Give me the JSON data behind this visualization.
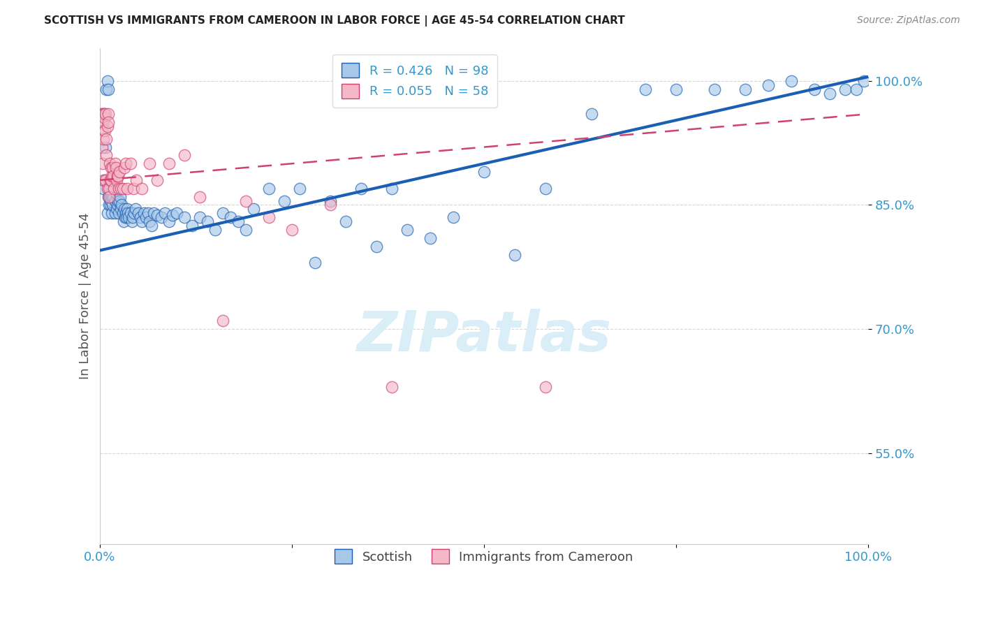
{
  "title": "SCOTTISH VS IMMIGRANTS FROM CAMEROON IN LABOR FORCE | AGE 45-54 CORRELATION CHART",
  "source": "Source: ZipAtlas.com",
  "ylabel": "In Labor Force | Age 45-54",
  "xlim": [
    0.0,
    1.0
  ],
  "ylim": [
    0.44,
    1.04
  ],
  "ytick_positions": [
    0.55,
    0.7,
    0.85,
    1.0
  ],
  "ytick_labels": [
    "55.0%",
    "70.0%",
    "85.0%",
    "100.0%"
  ],
  "xtick_positions": [
    0.0,
    0.25,
    0.5,
    0.75,
    1.0
  ],
  "xtick_labels": [
    "0.0%",
    "",
    "",
    "",
    "100.0%"
  ],
  "blue_R": 0.426,
  "blue_N": 98,
  "pink_R": 0.055,
  "pink_N": 58,
  "blue_color": "#a8c8e8",
  "pink_color": "#f4b8c8",
  "trend_blue": "#1a5fb4",
  "trend_pink": "#d04070",
  "watermark": "ZIPatlas",
  "watermark_color": "#daeef8",
  "legend_label_blue": "Scottish",
  "legend_label_pink": "Immigrants from Cameroon",
  "blue_scatter_x": [
    0.005,
    0.007,
    0.008,
    0.009,
    0.01,
    0.01,
    0.011,
    0.011,
    0.012,
    0.012,
    0.013,
    0.013,
    0.014,
    0.014,
    0.015,
    0.015,
    0.016,
    0.016,
    0.017,
    0.018,
    0.019,
    0.02,
    0.02,
    0.021,
    0.022,
    0.023,
    0.024,
    0.025,
    0.026,
    0.027,
    0.028,
    0.029,
    0.03,
    0.031,
    0.032,
    0.033,
    0.034,
    0.035,
    0.036,
    0.037,
    0.038,
    0.04,
    0.042,
    0.043,
    0.045,
    0.047,
    0.05,
    0.053,
    0.055,
    0.058,
    0.06,
    0.063,
    0.065,
    0.068,
    0.07,
    0.075,
    0.08,
    0.085,
    0.09,
    0.095,
    0.1,
    0.11,
    0.12,
    0.13,
    0.14,
    0.15,
    0.16,
    0.17,
    0.18,
    0.19,
    0.2,
    0.22,
    0.24,
    0.26,
    0.28,
    0.3,
    0.32,
    0.34,
    0.36,
    0.38,
    0.4,
    0.43,
    0.46,
    0.5,
    0.54,
    0.58,
    0.64,
    0.71,
    0.75,
    0.8,
    0.84,
    0.87,
    0.9,
    0.93,
    0.95,
    0.97,
    0.985,
    0.995
  ],
  "blue_scatter_y": [
    0.87,
    0.88,
    0.92,
    0.99,
    1.0,
    0.84,
    0.86,
    0.99,
    0.88,
    0.85,
    0.87,
    0.86,
    0.86,
    0.85,
    0.855,
    0.865,
    0.84,
    0.86,
    0.85,
    0.86,
    0.87,
    0.84,
    0.855,
    0.865,
    0.845,
    0.85,
    0.855,
    0.84,
    0.855,
    0.86,
    0.845,
    0.85,
    0.84,
    0.83,
    0.845,
    0.835,
    0.84,
    0.835,
    0.845,
    0.84,
    0.835,
    0.84,
    0.83,
    0.835,
    0.84,
    0.845,
    0.84,
    0.835,
    0.83,
    0.84,
    0.835,
    0.84,
    0.83,
    0.825,
    0.84,
    0.838,
    0.835,
    0.84,
    0.83,
    0.838,
    0.84,
    0.835,
    0.825,
    0.835,
    0.83,
    0.82,
    0.84,
    0.835,
    0.83,
    0.82,
    0.845,
    0.87,
    0.855,
    0.87,
    0.78,
    0.855,
    0.83,
    0.87,
    0.8,
    0.87,
    0.82,
    0.81,
    0.835,
    0.89,
    0.79,
    0.87,
    0.96,
    0.99,
    0.99,
    0.99,
    0.99,
    0.995,
    1.0,
    0.99,
    0.985,
    0.99,
    0.99,
    1.0
  ],
  "pink_scatter_x": [
    0.002,
    0.003,
    0.003,
    0.004,
    0.004,
    0.005,
    0.005,
    0.005,
    0.006,
    0.006,
    0.007,
    0.007,
    0.008,
    0.008,
    0.009,
    0.009,
    0.01,
    0.01,
    0.011,
    0.011,
    0.012,
    0.012,
    0.013,
    0.014,
    0.015,
    0.015,
    0.016,
    0.017,
    0.018,
    0.019,
    0.02,
    0.021,
    0.022,
    0.023,
    0.024,
    0.025,
    0.026,
    0.028,
    0.03,
    0.032,
    0.034,
    0.036,
    0.04,
    0.044,
    0.048,
    0.055,
    0.065,
    0.075,
    0.09,
    0.11,
    0.13,
    0.16,
    0.19,
    0.22,
    0.25,
    0.3,
    0.38,
    0.58
  ],
  "pink_scatter_y": [
    0.96,
    0.94,
    0.92,
    0.96,
    0.9,
    0.93,
    0.95,
    0.88,
    0.96,
    0.96,
    0.94,
    0.955,
    0.96,
    0.88,
    0.93,
    0.91,
    0.945,
    0.87,
    0.96,
    0.95,
    0.87,
    0.86,
    0.9,
    0.88,
    0.895,
    0.88,
    0.885,
    0.895,
    0.885,
    0.87,
    0.9,
    0.895,
    0.88,
    0.885,
    0.885,
    0.87,
    0.89,
    0.87,
    0.87,
    0.895,
    0.9,
    0.87,
    0.9,
    0.87,
    0.88,
    0.87,
    0.9,
    0.88,
    0.9,
    0.91,
    0.86,
    0.71,
    0.855,
    0.835,
    0.82,
    0.85,
    0.63,
    0.63
  ],
  "blue_trendline_x": [
    0.0,
    1.0
  ],
  "blue_trendline_y": [
    0.795,
    1.005
  ],
  "pink_trendline_x": [
    0.0,
    1.0
  ],
  "pink_trendline_y": [
    0.88,
    0.96
  ]
}
